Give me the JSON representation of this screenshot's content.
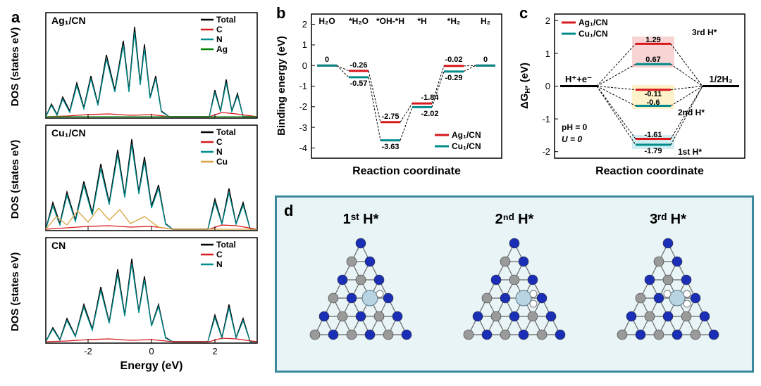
{
  "colors": {
    "total": "#000000",
    "c": "#d7191c",
    "n": "#008c8c",
    "ag": "#008000",
    "cu": "#d9a441",
    "ag_series": "#d7191c",
    "cu_series": "#008c8c",
    "atom_n": "#1a2fb5",
    "atom_c": "#9a9a9a",
    "atom_metal": "#b8d4e3",
    "atom_h": "#ffffff",
    "panel_d_border": "#3a8a9c",
    "panel_d_bg": "#e8f4f6",
    "highlight_red": "#f9d4d4",
    "highlight_yellow": "#fdf2ca",
    "highlight_blue": "#d0eef2"
  },
  "panel_a": {
    "label": "a",
    "x_label": "Energy (eV)",
    "y_label": "DOS (states eV)",
    "xlim": [
      -3.3,
      3.3
    ],
    "xticks": [
      -2,
      0,
      2
    ],
    "subpanels": [
      {
        "title": "Ag₁/CN",
        "title_key": "panel_a.subpanels.0.title",
        "legend": [
          [
            "Total",
            "total"
          ],
          [
            "C",
            "c"
          ],
          [
            "N",
            "n"
          ],
          [
            "Ag",
            "ag"
          ]
        ]
      },
      {
        "title": "Cu₁/CN",
        "title_key": "panel_a.subpanels.1.title",
        "legend": [
          [
            "Total",
            "total"
          ],
          [
            "C",
            "c"
          ],
          [
            "N",
            "n"
          ],
          [
            "Cu",
            "cu"
          ]
        ]
      },
      {
        "title": "CN",
        "title_key": "panel_a.subpanels.2.title",
        "legend": [
          [
            "Total",
            "total"
          ],
          [
            "C",
            "c"
          ],
          [
            "N",
            "n"
          ]
        ]
      }
    ],
    "dos_style": {
      "linewidth": 1.2,
      "grid": false
    }
  },
  "panel_b": {
    "label": "b",
    "x_label": "Reaction coordinate",
    "y_label": "Binding energy (eV)",
    "ylim": [
      -4.5,
      2.5
    ],
    "yticks": [
      -4,
      -3,
      -2,
      -1,
      0,
      1,
      2
    ],
    "steps": [
      "H₂O",
      "*H₂O",
      "*OH-*H",
      "*H",
      "*H₂",
      "H₂"
    ],
    "series": [
      {
        "name": "Ag₁/CN",
        "color_key": "ag_series",
        "values": [
          0,
          -0.26,
          -2.75,
          -1.84,
          -0.02,
          0
        ]
      },
      {
        "name": "Cu₁/CN",
        "color_key": "cu_series",
        "values": [
          0,
          -0.57,
          -3.63,
          -2.02,
          -0.29,
          0
        ]
      }
    ],
    "value_labels": {
      "H2O": "0",
      "H2": "0",
      "ag": [
        "-0.26",
        "-2.75",
        "-1.84",
        "-0.02"
      ],
      "cu": [
        "-0.57",
        "-3.63",
        "-2.02",
        "-0.29"
      ]
    }
  },
  "panel_c": {
    "label": "c",
    "x_label": "Reaction coordinate",
    "y_label": "ΔG_H* (eV)",
    "ylim": [
      -2.2,
      2.2
    ],
    "yticks": [
      -2,
      -1,
      0,
      1,
      2
    ],
    "end_left": "H⁺+e⁻",
    "end_right": "1/2H₂",
    "conditions": {
      "ph": "pH = 0",
      "u": "U = 0"
    },
    "groups": [
      {
        "label": "3rd H*",
        "highlight": "highlight_red",
        "ag": 1.29,
        "cu": 0.67
      },
      {
        "label": "2nd H*",
        "highlight": "highlight_yellow",
        "ag": -0.11,
        "cu": -0.6
      },
      {
        "label": "1st H*",
        "highlight": "highlight_blue",
        "ag": -1.61,
        "cu": -1.79
      }
    ]
  },
  "panel_d": {
    "label": "d",
    "items": [
      {
        "title": "1ˢᵗ H*",
        "n_h": 1
      },
      {
        "title": "2ⁿᵈ H*",
        "n_h": 2
      },
      {
        "title": "3ʳᵈ H*",
        "n_h": 3
      }
    ]
  },
  "typography": {
    "panel_label_pt": 22,
    "panel_label_weight": 700,
    "axis_label_pt": 16,
    "axis_label_weight": 600,
    "tick_pt": 13,
    "legend_pt": 12,
    "value_pt": 12
  }
}
